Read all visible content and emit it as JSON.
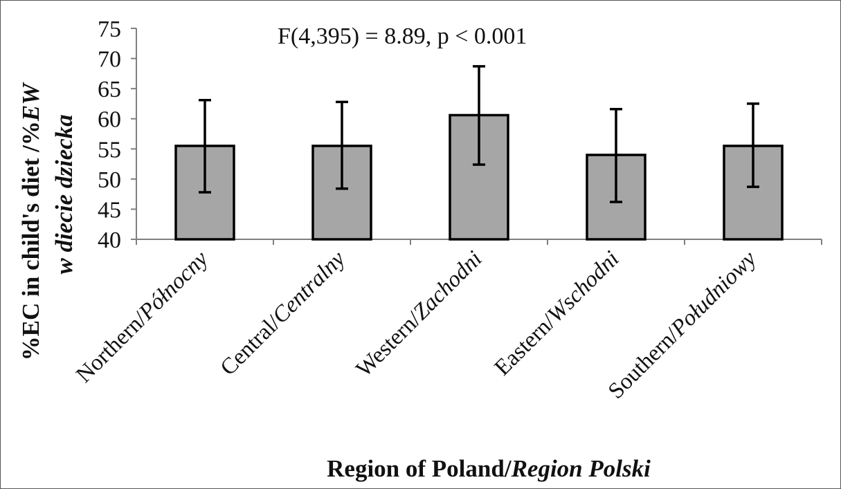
{
  "chart_data": {
    "type": "bar",
    "annotation": "F(4,395)  = 8.89, p < 0.001",
    "xlabel": {
      "regular": "Region of Poland/",
      "italic": "Region Polski"
    },
    "ylabel": {
      "line1": "%EC in child's diet /%",
      "line1_italic": "EW",
      "line2": "w diecie dziecka"
    },
    "categories": [
      {
        "regular": "Northern/",
        "italic": "Północny"
      },
      {
        "regular": "Central/",
        "italic": "Centralny"
      },
      {
        "regular": "Western/",
        "italic": "Zachodni"
      },
      {
        "regular": "Eastern/",
        "italic": "Wschodni"
      },
      {
        "regular": "Southern/",
        "italic": "Południowy"
      }
    ],
    "values": [
      55.5,
      55.5,
      60.6,
      54.0,
      55.5
    ],
    "error_low": [
      47.8,
      48.4,
      52.4,
      46.2,
      48.7
    ],
    "error_high": [
      63.1,
      62.8,
      68.7,
      61.6,
      62.5
    ],
    "ylim": [
      40,
      75
    ],
    "yticks": [
      "40",
      "45",
      "50",
      "55",
      "60",
      "65",
      "70",
      "75"
    ],
    "grid": false,
    "bar_color": "#a6a6a6",
    "edge_color": "#000000"
  }
}
